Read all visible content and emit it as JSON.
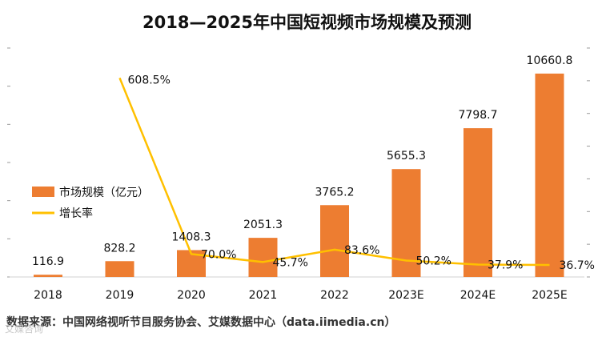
{
  "chart_data": {
    "type": "bar",
    "title": "2018—2025年中国短视频市场规模及预测",
    "categories": [
      "2018",
      "2019",
      "2020",
      "2021",
      "2022",
      "2023E",
      "2024E",
      "2025E"
    ],
    "series": [
      {
        "name": "市场规模（亿元）",
        "type": "bar",
        "color": "#ED7D31",
        "values": [
          116.9,
          828.2,
          1408.3,
          2051.3,
          3765.2,
          5655.3,
          7798.7,
          10660.8
        ],
        "labels": [
          "116.9",
          "828.2",
          "1408.3",
          "2051.3",
          "3765.2",
          "5655.3",
          "7798.7",
          "10660.8"
        ]
      },
      {
        "name": "增长率",
        "type": "line",
        "color": "#FFC000",
        "x": [
          "2019",
          "2020",
          "2021",
          "2022",
          "2023E",
          "2024E",
          "2025E"
        ],
        "values": [
          608.5,
          70.0,
          45.7,
          83.6,
          50.2,
          37.9,
          36.7
        ],
        "labels": [
          "608.5%",
          "70.0%",
          "45.7%",
          "83.6%",
          "50.2%",
          "37.9%",
          "36.7%"
        ]
      }
    ],
    "ylim": [
      0,
      12000
    ],
    "y2lim": [
      0,
      700
    ],
    "legend_position": "left"
  },
  "source_note": "数据来源：中国网络视听节目服务协会、艾媒数据中心（data.iimedia.cn）",
  "watermark": "艾媒咨询"
}
